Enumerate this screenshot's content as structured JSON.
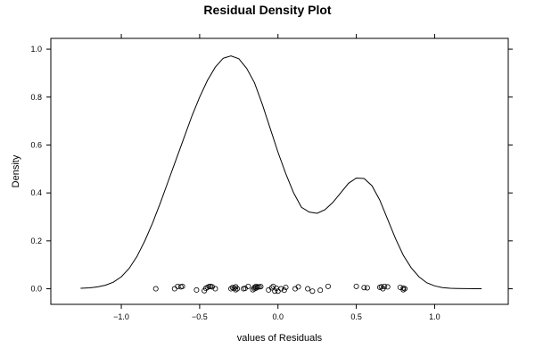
{
  "chart_data": {
    "type": "line",
    "title": "Residual Density Plot",
    "xlabel": "values of Residuals",
    "ylabel": "Density",
    "xlim": [
      -1.45,
      1.47
    ],
    "ylim": [
      -0.065,
      1.045
    ],
    "x_ticks": [
      -1.0,
      -0.5,
      0.0,
      0.5,
      1.0
    ],
    "x_tick_labels": [
      "−1.0",
      "−0.5",
      "0.0",
      "0.5",
      "1.0"
    ],
    "y_ticks": [
      0.0,
      0.2,
      0.4,
      0.6,
      0.8,
      1.0
    ],
    "y_tick_labels": [
      "0.0",
      "0.2",
      "0.4",
      "0.6",
      "0.8",
      "1.0"
    ],
    "grid": false,
    "series": [
      {
        "x": [
          -1.26,
          -1.2,
          -1.15,
          -1.1,
          -1.05,
          -1.0,
          -0.95,
          -0.9,
          -0.85,
          -0.8,
          -0.75,
          -0.7,
          -0.65,
          -0.6,
          -0.55,
          -0.5,
          -0.45,
          -0.4,
          -0.35,
          -0.3,
          -0.25,
          -0.2,
          -0.15,
          -0.1,
          -0.05,
          0.0,
          0.05,
          0.1,
          0.15,
          0.2,
          0.25,
          0.3,
          0.35,
          0.4,
          0.45,
          0.5,
          0.55,
          0.6,
          0.65,
          0.7,
          0.75,
          0.8,
          0.85,
          0.9,
          0.95,
          1.0,
          1.05,
          1.1,
          1.15,
          1.2,
          1.25,
          1.3
        ],
        "y": [
          0.002,
          0.004,
          0.008,
          0.015,
          0.028,
          0.05,
          0.085,
          0.135,
          0.2,
          0.275,
          0.36,
          0.45,
          0.54,
          0.63,
          0.72,
          0.8,
          0.87,
          0.925,
          0.962,
          0.972,
          0.96,
          0.92,
          0.86,
          0.77,
          0.67,
          0.57,
          0.48,
          0.4,
          0.34,
          0.32,
          0.315,
          0.33,
          0.36,
          0.4,
          0.44,
          0.462,
          0.46,
          0.43,
          0.37,
          0.29,
          0.21,
          0.14,
          0.088,
          0.05,
          0.025,
          0.012,
          0.005,
          0.002,
          0.001,
          0.0007,
          0.0004,
          0.0002
        ]
      }
    ],
    "rug": {
      "x": [
        -0.78,
        -0.66,
        -0.64,
        -0.62,
        -0.61,
        -0.52,
        -0.47,
        -0.46,
        -0.45,
        -0.44,
        -0.43,
        -0.42,
        -0.4,
        -0.3,
        -0.29,
        -0.28,
        -0.27,
        -0.27,
        -0.26,
        -0.22,
        -0.21,
        -0.19,
        -0.16,
        -0.15,
        -0.15,
        -0.14,
        -0.14,
        -0.13,
        -0.12,
        -0.11,
        -0.06,
        -0.04,
        -0.03,
        -0.02,
        -0.01,
        0.0,
        0.02,
        0.04,
        0.05,
        0.11,
        0.13,
        0.19,
        0.22,
        0.27,
        0.32,
        0.5,
        0.55,
        0.57,
        0.65,
        0.66,
        0.67,
        0.68,
        0.7,
        0.78,
        0.8,
        0.8,
        0.81
      ],
      "y": [
        0.0,
        0.0,
        0.01,
        0.008,
        0.01,
        -0.005,
        -0.008,
        0.002,
        0.006,
        0.009,
        0.01,
        0.008,
        0.0,
        0.0,
        0.005,
        0.002,
        -0.004,
        0.008,
        0.0,
        0.0,
        0.002,
        0.01,
        -0.004,
        0.006,
        0.0,
        0.01,
        0.003,
        0.007,
        0.008,
        0.009,
        -0.005,
        0.004,
        0.01,
        -0.01,
        0.002,
        -0.01,
        0.0,
        -0.006,
        0.006,
        0.0,
        0.008,
        0.0,
        -0.01,
        -0.006,
        0.01,
        0.01,
        0.005,
        0.004,
        0.006,
        0.008,
        0.0,
        0.01,
        0.008,
        0.006,
        -0.004,
        0.003,
        0.0
      ]
    }
  }
}
